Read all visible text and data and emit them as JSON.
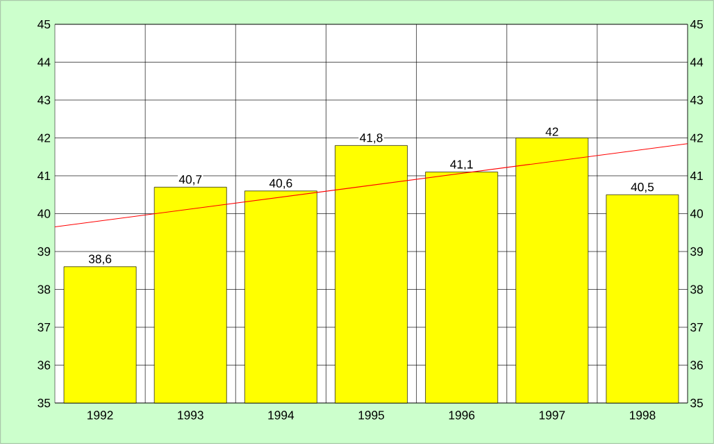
{
  "chart_data": {
    "type": "bar",
    "x": [
      1992,
      1993,
      1994,
      1995,
      1996,
      1997,
      1998
    ],
    "xlim": [
      1991.5,
      1998.5
    ],
    "xticks": [
      1992,
      1993,
      1994,
      1995,
      1996,
      1997,
      1998
    ],
    "ylim": [
      35,
      45
    ],
    "yticks": [
      35,
      36,
      37,
      38,
      39,
      40,
      41,
      42,
      43,
      44,
      45
    ],
    "y2lim": [
      35,
      45
    ],
    "y2ticks": [
      35,
      36,
      37,
      38,
      39,
      40,
      41,
      42,
      43,
      44,
      45
    ],
    "grid": true,
    "series": [
      {
        "color": "#ffff00",
        "values": [
          38.6,
          40.7,
          40.6,
          41.8,
          41.1,
          42,
          40.5
        ],
        "value_labels": [
          "38,6",
          "40,7",
          "40,6",
          "41,8",
          "41,1",
          "42",
          "40,5"
        ]
      },
      {
        "type": "line",
        "color": "#ff0000",
        "x": [
          1991.5,
          1998.5
        ],
        "values": [
          39.65,
          41.85
        ],
        "marker": "none",
        "line_style": "solid"
      }
    ]
  }
}
